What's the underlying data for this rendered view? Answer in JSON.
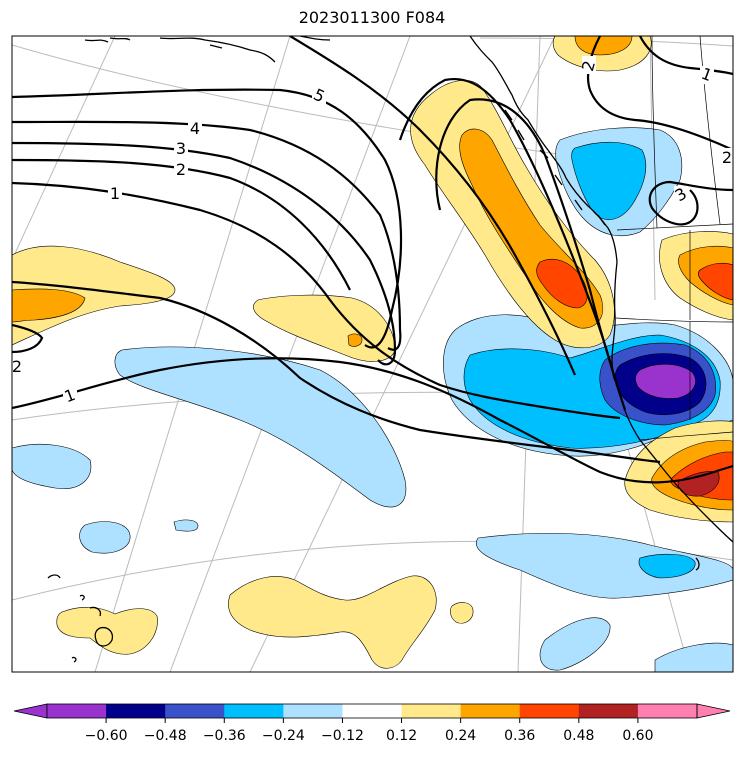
{
  "title": "2023011300 F084",
  "colors": {
    "neg_060": "#9a32cd",
    "neg_048": "#00008b",
    "neg_036": "#3a52c9",
    "neg_024": "#00bfff",
    "neg_012": "#aee0ff",
    "neutral": "#ffffff",
    "pos_012": "#ffe98a",
    "pos_024": "#ffa500",
    "pos_036": "#ff4500",
    "pos_048": "#b22222",
    "pos_060": "#ff80b0"
  },
  "colorbar": {
    "ticks": [
      "−0.60",
      "−0.48",
      "−0.36",
      "−0.24",
      "−0.12",
      "0.12",
      "0.24",
      "0.36",
      "0.48",
      "0.60"
    ],
    "extend": "both"
  },
  "contour_labels": {
    "c5": "5",
    "c4": "4",
    "c3": "3",
    "c2": "2",
    "c1": "1",
    "c2w": "2",
    "c1s": "1",
    "ne2": "2",
    "ne1": "1",
    "e2": "2",
    "e3": "3"
  }
}
